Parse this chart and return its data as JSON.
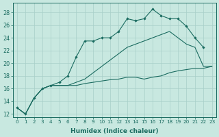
{
  "xlabel": "Humidex (Indice chaleur)",
  "bg_color": "#c8e8e0",
  "grid_color": "#a8cfc8",
  "line_color": "#1a6b60",
  "xlim": [
    -0.5,
    23.5
  ],
  "ylim": [
    11.5,
    29.5
  ],
  "xticks": [
    0,
    1,
    2,
    3,
    4,
    5,
    6,
    7,
    8,
    9,
    10,
    11,
    12,
    13,
    14,
    15,
    16,
    17,
    18,
    19,
    20,
    21,
    22,
    23
  ],
  "yticks": [
    12,
    14,
    16,
    18,
    20,
    22,
    24,
    26,
    28
  ],
  "series1_x": [
    0,
    1,
    2,
    3,
    4,
    5,
    6,
    7,
    8,
    9,
    10,
    11,
    12,
    13,
    14,
    15,
    16,
    17,
    18,
    19,
    20,
    21,
    22
  ],
  "series1_y": [
    13.0,
    12.0,
    14.5,
    16.0,
    16.5,
    17.0,
    18.0,
    21.0,
    23.5,
    23.5,
    24.0,
    24.0,
    25.0,
    27.0,
    26.7,
    27.0,
    28.5,
    27.5,
    27.0,
    27.0,
    25.8,
    24.0,
    22.5
  ],
  "series2_x": [
    0,
    1,
    2,
    3,
    4,
    5,
    6,
    7,
    8,
    9,
    10,
    11,
    12,
    13,
    14,
    15,
    16,
    17,
    18,
    19,
    20,
    21,
    22,
    23
  ],
  "series2_y": [
    13.0,
    12.0,
    14.5,
    16.0,
    16.5,
    16.5,
    16.5,
    17.0,
    17.5,
    18.5,
    19.5,
    20.5,
    21.5,
    22.5,
    23.0,
    23.5,
    24.0,
    24.5,
    25.0,
    24.0,
    23.0,
    22.5,
    19.5,
    19.5
  ],
  "series3_x": [
    0,
    1,
    2,
    3,
    4,
    5,
    6,
    7,
    8,
    9,
    10,
    11,
    12,
    13,
    14,
    15,
    16,
    17,
    18,
    19,
    20,
    21,
    22,
    23
  ],
  "series3_y": [
    13.0,
    12.0,
    14.5,
    16.0,
    16.5,
    16.5,
    16.5,
    16.5,
    16.8,
    17.0,
    17.2,
    17.4,
    17.5,
    17.8,
    17.8,
    17.5,
    17.8,
    18.0,
    18.5,
    18.8,
    19.0,
    19.2,
    19.2,
    19.5
  ]
}
